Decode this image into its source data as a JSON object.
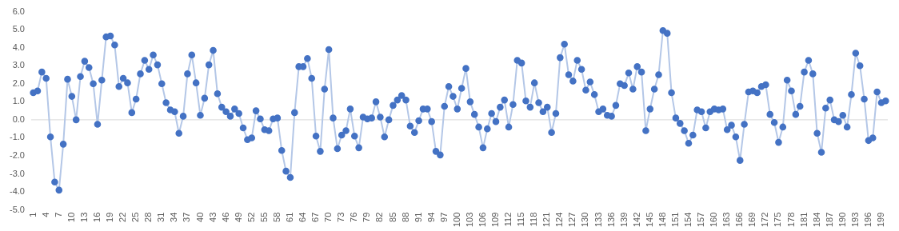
{
  "chart_data": {
    "type": "line",
    "marker": "circle",
    "legend": false,
    "grid": false,
    "categories": [
      "1",
      null,
      null,
      "4",
      null,
      null,
      "7",
      null,
      null,
      "10",
      null,
      null,
      "13",
      null,
      null,
      "16",
      null,
      null,
      "19",
      null,
      null,
      "22",
      null,
      null,
      "25",
      null,
      null,
      "28",
      null,
      null,
      "31",
      null,
      null,
      "34",
      null,
      null,
      "37",
      null,
      null,
      "40",
      null,
      null,
      "43",
      null,
      null,
      "46",
      null,
      null,
      "49",
      null,
      null,
      "52",
      null,
      null,
      "55",
      null,
      null,
      "58",
      null,
      null,
      "61",
      null,
      null,
      "64",
      null,
      null,
      "67",
      null,
      null,
      "70",
      null,
      null,
      "73",
      null,
      null,
      "76",
      null,
      null,
      "79",
      null,
      null,
      "82",
      null,
      null,
      "85",
      null,
      null,
      "88",
      null,
      null,
      "91",
      null,
      null,
      "94",
      null,
      null,
      "97",
      null,
      null,
      "100",
      null,
      null,
      "103",
      null,
      null,
      "106",
      null,
      null,
      "109",
      null,
      null,
      "112",
      null,
      null,
      "115",
      null,
      null,
      "118",
      null,
      null,
      "121",
      null,
      null,
      "124",
      null,
      null,
      "127",
      null,
      null,
      "130",
      null,
      null,
      "133",
      null,
      null,
      "136",
      null,
      null,
      "139",
      null,
      null,
      "142",
      null,
      null,
      "145",
      null,
      null,
      "148",
      null,
      null,
      "151",
      null,
      null,
      "154",
      null,
      null,
      "157",
      null,
      null,
      "160",
      null,
      null,
      "163",
      null,
      null,
      "166",
      null,
      null,
      "169",
      null,
      null,
      "172",
      null,
      null,
      "175",
      null,
      null,
      "178",
      null,
      null,
      "181",
      null,
      null,
      "184",
      null,
      null,
      "187",
      null,
      null,
      "190",
      null,
      null,
      "193",
      null,
      null,
      "196",
      null,
      null,
      "199",
      null
    ],
    "series": [
      {
        "color": "#4472c4",
        "values": [
          1.5,
          1.6,
          2.65,
          2.3,
          -0.95,
          -3.45,
          -3.9,
          -1.35,
          2.25,
          1.3,
          0.0,
          2.4,
          3.25,
          2.9,
          2.0,
          -0.25,
          2.2,
          4.6,
          4.65,
          4.15,
          1.85,
          2.3,
          2.05,
          0.4,
          1.15,
          2.55,
          3.3,
          2.8,
          3.6,
          3.05,
          2.0,
          0.95,
          0.55,
          0.45,
          -0.75,
          0.2,
          2.55,
          3.6,
          2.05,
          0.25,
          1.2,
          3.05,
          3.85,
          1.45,
          0.7,
          0.45,
          0.2,
          0.6,
          0.35,
          -0.45,
          -1.1,
          -1.0,
          0.5,
          0.05,
          -0.55,
          -0.6,
          0.05,
          0.1,
          -1.7,
          -2.85,
          -3.2,
          0.4,
          2.95,
          2.95,
          3.4,
          2.3,
          -0.9,
          -1.75,
          1.7,
          3.9,
          0.1,
          -1.6,
          -0.85,
          -0.6,
          0.6,
          -0.9,
          -1.55,
          0.15,
          0.05,
          0.1,
          1.0,
          0.15,
          -0.95,
          0.0,
          0.8,
          1.1,
          1.35,
          1.1,
          -0.35,
          -0.7,
          -0.05,
          0.6,
          0.6,
          -0.1,
          -1.75,
          -1.95,
          0.75,
          1.85,
          1.3,
          0.6,
          1.75,
          2.85,
          1.0,
          0.3,
          -0.4,
          -1.55,
          -0.5,
          0.35,
          -0.1,
          0.7,
          1.1,
          -0.4,
          0.85,
          3.3,
          3.15,
          1.05,
          0.7,
          2.05,
          0.95,
          0.45,
          0.7,
          -0.7,
          0.35,
          3.45,
          4.2,
          2.5,
          2.15,
          3.3,
          2.8,
          1.65,
          2.1,
          1.4,
          0.45,
          0.6,
          0.25,
          0.2,
          0.8,
          2.0,
          1.9,
          2.6,
          1.7,
          2.95,
          2.65,
          -0.6,
          0.6,
          1.7,
          2.5,
          4.95,
          4.8,
          1.5,
          0.1,
          -0.2,
          -0.6,
          -1.3,
          -0.85,
          0.55,
          0.45,
          -0.45,
          0.45,
          0.6,
          0.55,
          0.6,
          -0.55,
          -0.3,
          -0.95,
          -2.25,
          -0.25,
          1.55,
          1.6,
          1.5,
          1.85,
          1.95,
          0.3,
          -0.15,
          -1.25,
          -0.4,
          2.2,
          1.6,
          0.3,
          0.75,
          2.65,
          3.3,
          2.55,
          -0.75,
          -1.8,
          0.65,
          1.1,
          0.0,
          -0.1,
          0.25,
          -0.4,
          1.4,
          3.7,
          3.0,
          1.15,
          -1.15,
          -1.0,
          1.55,
          0.95,
          1.05
        ]
      }
    ],
    "ref_lines": [
      {
        "axis": "y",
        "value": 0,
        "color": "#d9d9d9"
      }
    ],
    "ylim": [
      -5,
      6
    ],
    "yticks": [
      {
        "value": -5,
        "label": "-5.0"
      },
      {
        "value": -4,
        "label": "-4.0"
      },
      {
        "value": -3,
        "label": "-3.0"
      },
      {
        "value": -2,
        "label": "-2.0"
      },
      {
        "value": -1,
        "label": "-1.0"
      },
      {
        "value": 0,
        "label": "0.0"
      },
      {
        "value": 1,
        "label": "1.0"
      },
      {
        "value": 2,
        "label": "2.0"
      },
      {
        "value": 3,
        "label": "3.0"
      },
      {
        "value": 4,
        "label": "4.0"
      },
      {
        "value": 5,
        "label": "5.0"
      },
      {
        "value": 6,
        "label": "6.0"
      }
    ]
  }
}
